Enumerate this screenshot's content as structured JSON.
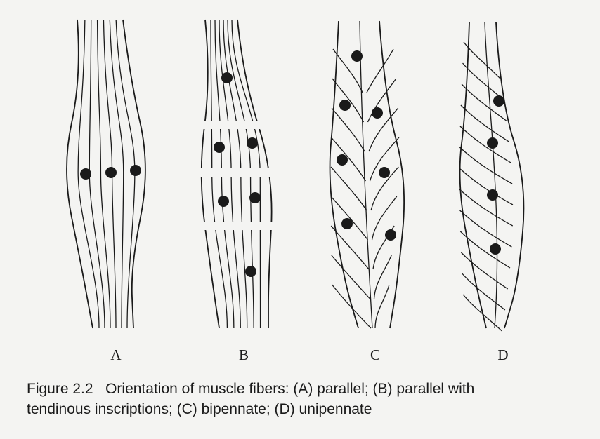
{
  "diagram": {
    "muscles": [
      {
        "id": "A",
        "label": "A",
        "arrangement": "parallel"
      },
      {
        "id": "B",
        "label": "B",
        "arrangement": "parallel-with-tendinous-inscriptions"
      },
      {
        "id": "C",
        "label": "C",
        "arrangement": "bipennate"
      },
      {
        "id": "D",
        "label": "D",
        "arrangement": "unipennate"
      }
    ]
  },
  "caption": {
    "number": "Figure 2.2",
    "line1": "Orientation of muscle fibers: (A) parallel; (B) parallel with",
    "line2": "tendinous inscriptions; (C) bipennate; (D) unipennate"
  },
  "colors": {
    "ink": "#1a1a1a",
    "paper": "#f4f4f2"
  }
}
